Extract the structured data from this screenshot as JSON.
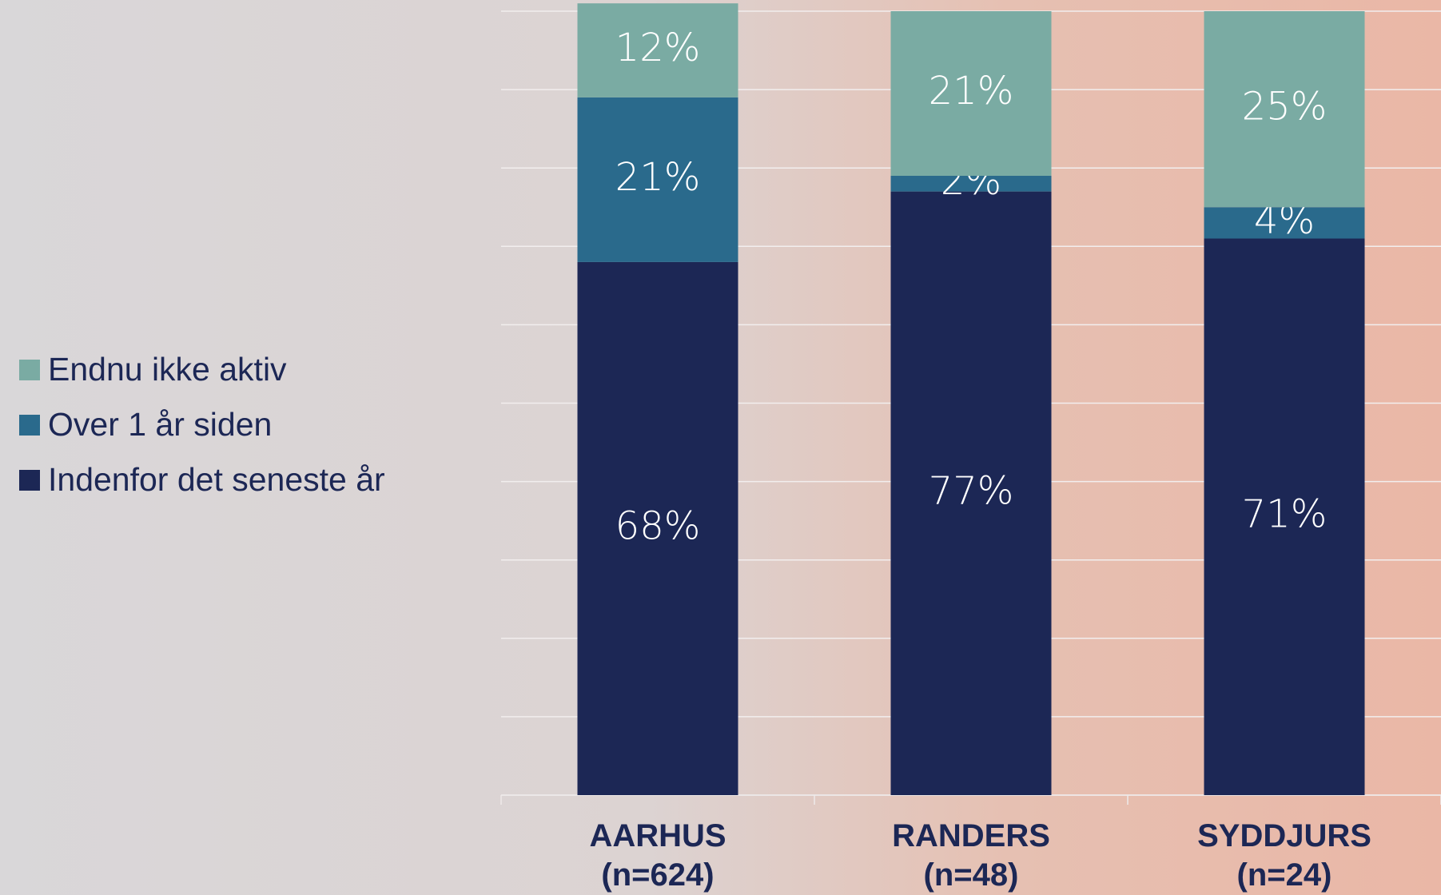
{
  "chart_data": {
    "type": "stacked_bar",
    "categories": [
      "AARHUS\n(n=624)",
      "RANDERS\n(n=48)",
      "SYDDJURS\n(n=24)"
    ],
    "series": [
      {
        "name": "Indenfor det seneste år",
        "color": "#1c2755",
        "values": [
          68,
          77,
          71
        ],
        "value_labels": [
          "68%",
          "77%",
          "71%"
        ]
      },
      {
        "name": "Over 1 år siden",
        "color": "#2a6a8c",
        "values": [
          21,
          2,
          4
        ],
        "value_labels": [
          "21%",
          "2%",
          "4%"
        ]
      },
      {
        "name": "Endnu ikke aktiv",
        "color": "#7aaba3",
        "values": [
          12,
          21,
          25
        ],
        "value_labels": [
          "12%",
          "21%",
          "25%"
        ]
      }
    ],
    "ylim": [
      0,
      100
    ],
    "yticks": [
      0,
      10,
      20,
      30,
      40,
      50,
      60,
      70,
      80,
      90,
      100
    ],
    "grid": true,
    "legend": "left"
  }
}
